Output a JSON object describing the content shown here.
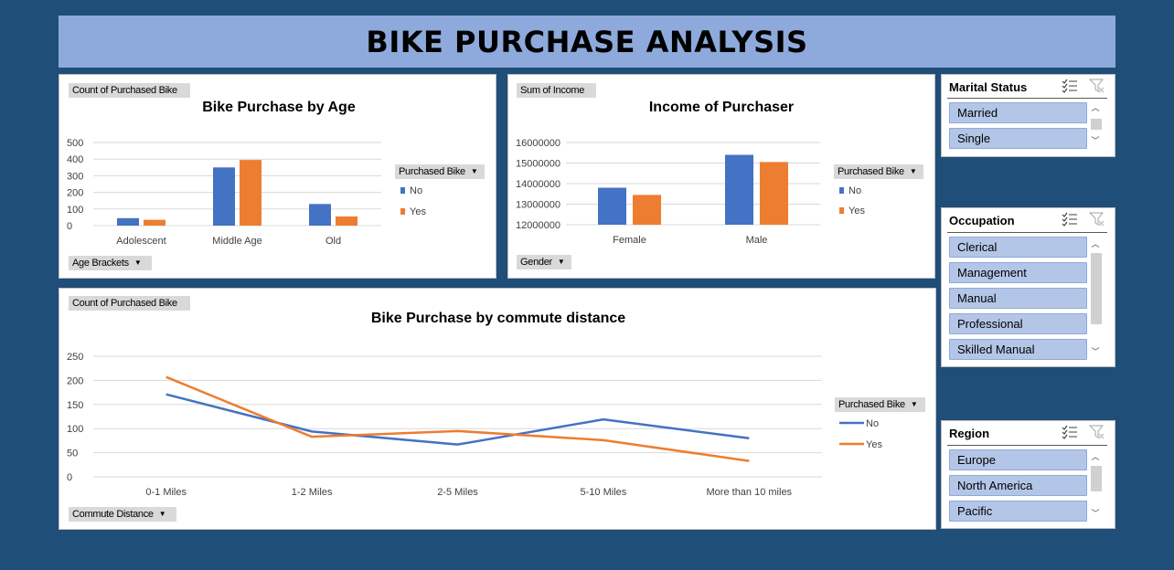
{
  "dashboard": {
    "title": "BIKE PURCHASE ANALYSIS"
  },
  "age_chart": {
    "value_field": "Count of Purchased Bike",
    "axis_field": "Age Brackets",
    "legend_field": "Purchased Bike",
    "title": "Bike Purchase by Age",
    "yticks": [
      "500",
      "400",
      "300",
      "200",
      "100",
      "0"
    ]
  },
  "income_chart": {
    "value_field": "Sum of Income",
    "axis_field": "Gender",
    "legend_field": "Purchased Bike",
    "title": "Income of Purchaser",
    "yticks": [
      "16000000",
      "15000000",
      "14000000",
      "13000000",
      "12000000"
    ]
  },
  "commute_chart": {
    "value_field": "Count of Purchased Bike",
    "axis_field": "Commute Distance",
    "legend_field": "Purchased Bike",
    "title": "Bike Purchase by commute distance",
    "yticks": [
      "250",
      "200",
      "150",
      "100",
      "50",
      "0"
    ]
  },
  "colors": {
    "no": "#4472C4",
    "yes": "#ED7D31",
    "background": "#1F4E79",
    "header": "#8EA9DB",
    "slicer_item": "#B4C6E7"
  },
  "chart_data": [
    {
      "type": "bar",
      "title": "Bike Purchase by Age",
      "categories": [
        "Adolescent",
        "Middle Age",
        "Old"
      ],
      "series": [
        {
          "name": "No",
          "values": [
            45,
            350,
            130
          ]
        },
        {
          "name": "Yes",
          "values": [
            35,
            395,
            55
          ]
        }
      ],
      "ylim": [
        0,
        500
      ],
      "grid": true,
      "legend": "right"
    },
    {
      "type": "bar",
      "title": "Income of Purchaser",
      "categories": [
        "Female",
        "Male"
      ],
      "series": [
        {
          "name": "No",
          "values": [
            13800000,
            15400000
          ]
        },
        {
          "name": "Yes",
          "values": [
            13450000,
            15050000
          ]
        }
      ],
      "ylim": [
        12000000,
        16000000
      ],
      "grid": true,
      "legend": "right"
    },
    {
      "type": "line",
      "title": "Bike Purchase by commute distance",
      "categories": [
        "0-1 Miles",
        "1-2 Miles",
        "2-5 Miles",
        "5-10 Miles",
        "More than 10 miles"
      ],
      "series": [
        {
          "name": "No",
          "values": [
            171,
            94,
            67,
            119,
            80
          ]
        },
        {
          "name": "Yes",
          "values": [
            207,
            83,
            95,
            76,
            33
          ]
        }
      ],
      "ylim": [
        0,
        250
      ],
      "grid": true,
      "legend": "right"
    }
  ],
  "slicers": {
    "marital": {
      "title": "Marital Status",
      "items": [
        "Married",
        "Single"
      ]
    },
    "occupation": {
      "title": "Occupation",
      "items": [
        "Clerical",
        "Management",
        "Manual",
        "Professional",
        "Skilled Manual"
      ]
    },
    "region": {
      "title": "Region",
      "items": [
        "Europe",
        "North America",
        "Pacific"
      ]
    }
  }
}
